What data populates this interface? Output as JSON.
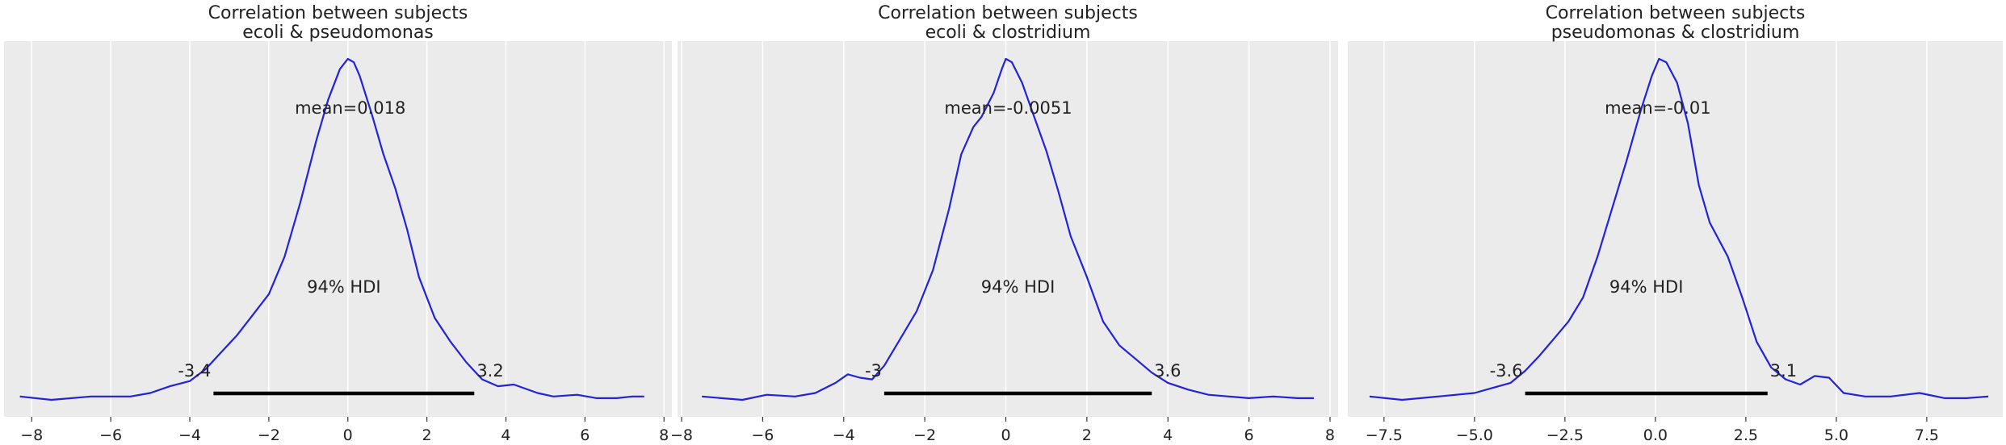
{
  "style": {
    "plot_bg": "#ebebeb",
    "grid_color": "#ffffff",
    "curve_color": "#2222dd",
    "hdi_color": "#000000",
    "text_color": "#222222"
  },
  "chart_data": [
    {
      "type": "line",
      "kind": "posterior-density",
      "title_line1": "Correlation between subjects",
      "title_line2": "ecoli & pseudomonas",
      "xlim": [
        -8.7,
        8.2
      ],
      "xticks": [
        -8,
        -6,
        -4,
        -2,
        0,
        2,
        4,
        6,
        8
      ],
      "xtick_labels": [
        "−8",
        "−6",
        "−4",
        "−2",
        "0",
        "2",
        "4",
        "6",
        "8"
      ],
      "mean_label": "mean=0.018",
      "hdi_label": "94% HDI",
      "hdi_low": -3.4,
      "hdi_high": 3.2,
      "hdi_low_label": "-3.4",
      "hdi_high_label": "3.2",
      "curve_x": [
        -8.3,
        -7.5,
        -6.5,
        -5.5,
        -5.0,
        -4.5,
        -4.0,
        -3.6,
        -3.2,
        -2.8,
        -2.4,
        -2.0,
        -1.6,
        -1.2,
        -0.8,
        -0.5,
        -0.2,
        0.0,
        0.15,
        0.3,
        0.6,
        0.9,
        1.2,
        1.5,
        1.8,
        2.2,
        2.6,
        3.0,
        3.4,
        3.8,
        4.2,
        4.8,
        5.2,
        5.8,
        6.3,
        6.8,
        7.2,
        7.5
      ],
      "curve_y": [
        0.01,
        0.0,
        0.01,
        0.01,
        0.02,
        0.04,
        0.055,
        0.09,
        0.14,
        0.19,
        0.25,
        0.31,
        0.42,
        0.58,
        0.76,
        0.88,
        0.97,
        1.0,
        0.99,
        0.95,
        0.84,
        0.72,
        0.62,
        0.5,
        0.36,
        0.24,
        0.17,
        0.11,
        0.06,
        0.04,
        0.045,
        0.02,
        0.01,
        0.015,
        0.005,
        0.005,
        0.01,
        0.01
      ]
    },
    {
      "type": "line",
      "kind": "posterior-density",
      "title_line1": "Correlation between subjects",
      "title_line2": "ecoli & clostridium",
      "xlim": [
        -8.1,
        8.2
      ],
      "xticks": [
        -8,
        -6,
        -4,
        -2,
        0,
        2,
        4,
        6,
        8
      ],
      "xtick_labels": [
        "−8",
        "−6",
        "−4",
        "−2",
        "0",
        "2",
        "4",
        "6",
        "8"
      ],
      "mean_label": "mean=-0.0051",
      "hdi_label": "94% HDI",
      "hdi_low": -3.0,
      "hdi_high": 3.6,
      "hdi_low_label": "-3",
      "hdi_high_label": "3.6",
      "curve_x": [
        -7.5,
        -6.5,
        -5.9,
        -5.2,
        -4.7,
        -4.2,
        -3.9,
        -3.6,
        -3.3,
        -3.0,
        -2.6,
        -2.2,
        -1.8,
        -1.4,
        -1.1,
        -0.8,
        -0.6,
        -0.3,
        -0.1,
        0.0,
        0.15,
        0.4,
        0.7,
        1.0,
        1.3,
        1.6,
        2.0,
        2.4,
        2.8,
        3.2,
        3.6,
        4.0,
        4.5,
        5.0,
        5.5,
        6.0,
        6.6,
        7.2,
        7.6
      ],
      "curve_y": [
        0.01,
        0.0,
        0.015,
        0.01,
        0.02,
        0.05,
        0.075,
        0.065,
        0.06,
        0.1,
        0.18,
        0.26,
        0.38,
        0.56,
        0.72,
        0.8,
        0.83,
        0.9,
        0.97,
        1.0,
        0.99,
        0.93,
        0.83,
        0.73,
        0.61,
        0.48,
        0.36,
        0.23,
        0.16,
        0.12,
        0.08,
        0.05,
        0.03,
        0.015,
        0.01,
        0.005,
        0.01,
        0.005,
        0.005
      ]
    },
    {
      "type": "line",
      "kind": "posterior-density",
      "title_line1": "Correlation between subjects",
      "title_line2": "pseudomonas & clostridium",
      "xlim": [
        -8.5,
        9.6
      ],
      "xticks": [
        -7.5,
        -5.0,
        -2.5,
        0.0,
        2.5,
        5.0,
        7.5
      ],
      "xtick_labels": [
        "−7.5",
        "−5.0",
        "−2.5",
        "0.0",
        "2.5",
        "5.0",
        "7.5"
      ],
      "mean_label": "mean=-0.01",
      "hdi_label": "94% HDI",
      "hdi_low": -3.6,
      "hdi_high": 3.1,
      "hdi_low_label": "-3.6",
      "hdi_high_label": "3.1",
      "curve_x": [
        -7.9,
        -7.0,
        -6.0,
        -5.0,
        -4.5,
        -4.0,
        -3.6,
        -3.2,
        -2.8,
        -2.4,
        -2.0,
        -1.6,
        -1.2,
        -0.8,
        -0.4,
        -0.1,
        0.1,
        0.3,
        0.6,
        0.9,
        1.2,
        1.5,
        2.0,
        2.4,
        2.8,
        3.2,
        3.6,
        4.0,
        4.4,
        4.8,
        5.2,
        5.8,
        6.5,
        7.3,
        8.0,
        8.6,
        9.2
      ],
      "curve_y": [
        0.01,
        0.0,
        0.01,
        0.02,
        0.035,
        0.05,
        0.085,
        0.13,
        0.18,
        0.23,
        0.3,
        0.42,
        0.56,
        0.7,
        0.85,
        0.95,
        1.0,
        0.99,
        0.93,
        0.81,
        0.63,
        0.52,
        0.42,
        0.3,
        0.17,
        0.095,
        0.06,
        0.045,
        0.07,
        0.065,
        0.02,
        0.01,
        0.01,
        0.02,
        0.005,
        0.005,
        0.01
      ]
    }
  ]
}
